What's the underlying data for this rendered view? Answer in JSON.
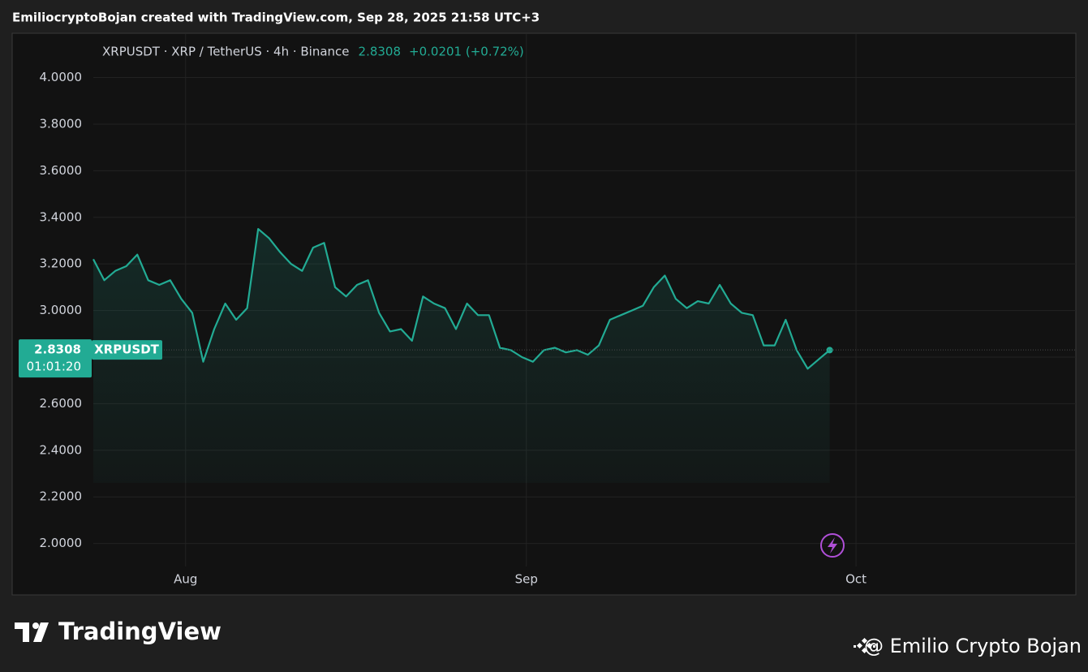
{
  "header": "EmiliocryptoBojan created with TradingView.com, Sep 28, 2025 21:58 UTC+3",
  "chart_data": {
    "type": "area",
    "title": "XRPUSDT · XRP / TetherUS · 4h · Binance",
    "last_price": 2.8308,
    "change": "+0.0201 (+0.72%)",
    "countdown": "01:01:20",
    "series": [
      {
        "name": "XRPUSDT",
        "color": "#22ab94",
        "values": [
          3.22,
          3.13,
          3.17,
          3.19,
          3.24,
          3.13,
          3.11,
          3.13,
          3.05,
          2.99,
          2.78,
          2.92,
          3.03,
          2.96,
          3.01,
          3.35,
          3.31,
          3.25,
          3.2,
          3.17,
          3.27,
          3.29,
          3.1,
          3.06,
          3.11,
          3.13,
          2.99,
          2.91,
          2.92,
          2.87,
          3.06,
          3.03,
          3.01,
          2.92,
          3.03,
          2.98,
          2.98,
          2.84,
          2.83,
          2.8,
          2.78,
          2.83,
          2.84,
          2.82,
          2.83,
          2.81,
          2.85,
          2.96,
          2.98,
          3.0,
          3.02,
          3.1,
          3.15,
          3.05,
          3.01,
          3.04,
          3.03,
          3.11,
          3.03,
          2.99,
          2.98,
          2.85,
          2.85,
          2.96,
          2.83,
          2.75,
          2.79,
          2.83
        ]
      }
    ],
    "xlim": [
      0,
      89.4
    ],
    "xticks": [
      {
        "value": 8.4,
        "label": "Aug"
      },
      {
        "value": 39.4,
        "label": "Sep"
      },
      {
        "value": 69.4,
        "label": "Oct"
      }
    ],
    "ylim": [
      1.8,
      4.19
    ],
    "yticks": [
      {
        "value": 2,
        "label": "2.0000"
      },
      {
        "value": 2.2,
        "label": "2.2000"
      },
      {
        "value": 2.4,
        "label": "2.4000"
      },
      {
        "value": 2.6,
        "label": "2.6000"
      },
      {
        "value": 2.8,
        "label": "2.8000"
      },
      {
        "value": 3,
        "label": "3.0000"
      },
      {
        "value": 3.2,
        "label": "3.2000"
      },
      {
        "value": 3.4,
        "label": "3.4000"
      },
      {
        "value": 3.6,
        "label": "3.6000"
      },
      {
        "value": 3.8,
        "label": "3.8000"
      },
      {
        "value": 4,
        "label": "4.0000"
      }
    ],
    "grid": true
  },
  "footer": {
    "brand": "TradingView",
    "watermark": "@ Emilio Crypto Bojan"
  }
}
